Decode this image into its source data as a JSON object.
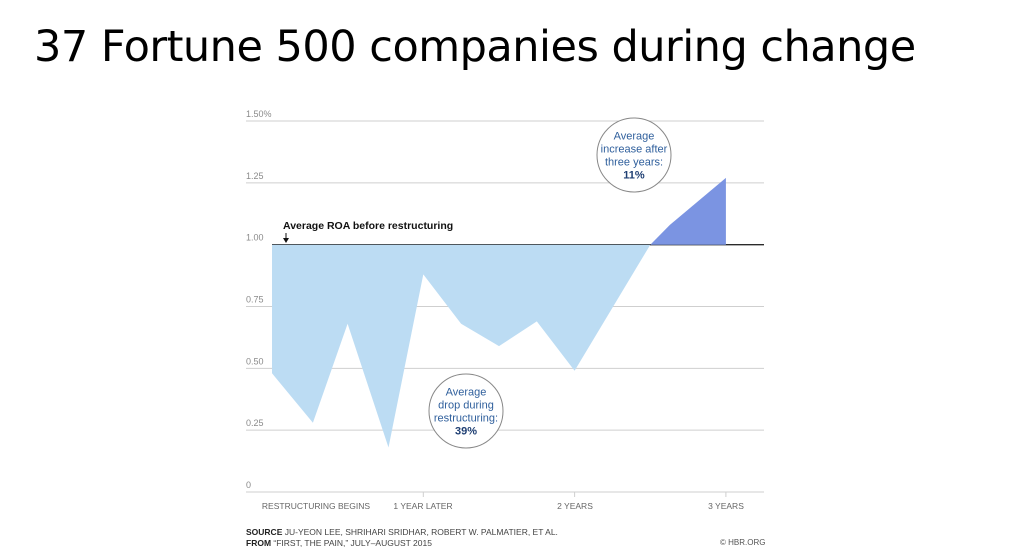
{
  "slide": {
    "title": "37 Fortune 500 companies during change"
  },
  "chart_data": {
    "type": "area",
    "y_tick_labels": [
      "0",
      "0.25",
      "0.50",
      "0.75",
      "1.00",
      "1.25",
      "1.50%"
    ],
    "y_ticks": [
      0,
      0.25,
      0.5,
      0.75,
      1.0,
      1.25,
      1.5
    ],
    "ylim": [
      0,
      1.5
    ],
    "x_tick_labels": [
      "RESTRUCTURING BEGINS",
      "1 YEAR LATER",
      "2 YEARS",
      "3 YEARS"
    ],
    "x_ticks": [
      0,
      1,
      2,
      3
    ],
    "xlim": [
      -0.2,
      3.1
    ],
    "baseline": 1.0,
    "grid": true,
    "series": [
      {
        "values": [
          {
            "x": 0.0,
            "y": 0.48
          },
          {
            "x": 0.27,
            "y": 0.28
          },
          {
            "x": 0.5,
            "y": 0.68
          },
          {
            "x": 0.77,
            "y": 0.18
          },
          {
            "x": 1.0,
            "y": 0.88
          },
          {
            "x": 1.25,
            "y": 0.68
          },
          {
            "x": 1.5,
            "y": 0.59
          },
          {
            "x": 1.75,
            "y": 0.69
          },
          {
            "x": 2.0,
            "y": 0.49
          },
          {
            "x": 2.5,
            "y": 1.0
          },
          {
            "x": 2.63,
            "y": 1.08
          },
          {
            "x": 3.0,
            "y": 1.27
          }
        ]
      }
    ],
    "colors": {
      "below_baseline": "#bcdcf3",
      "above_baseline": "#7b94e2",
      "grid": "#cfcfcf",
      "baseline": "#2b2b2b",
      "callout_text": "#2f5f9c",
      "axis_text": "#8a8a8a"
    },
    "annotations": {
      "baseline_label": "Average ROA before restructuring",
      "drop_callout": {
        "lines": [
          "Average",
          "drop during",
          "restructuring:"
        ],
        "value": "39%"
      },
      "increase_callout": {
        "lines": [
          "Average",
          "increase after",
          "three years:"
        ],
        "value": "11%"
      }
    }
  },
  "footer": {
    "source_label": "SOURCE",
    "source_text": "JU-YEON LEE, SHRIHARI SRIDHAR, ROBERT W. PALMATIER, ET AL.",
    "from_label": "FROM",
    "from_text": "“FIRST, THE PAIN,” JULY–AUGUST 2015",
    "credit": "© HBR.ORG"
  }
}
